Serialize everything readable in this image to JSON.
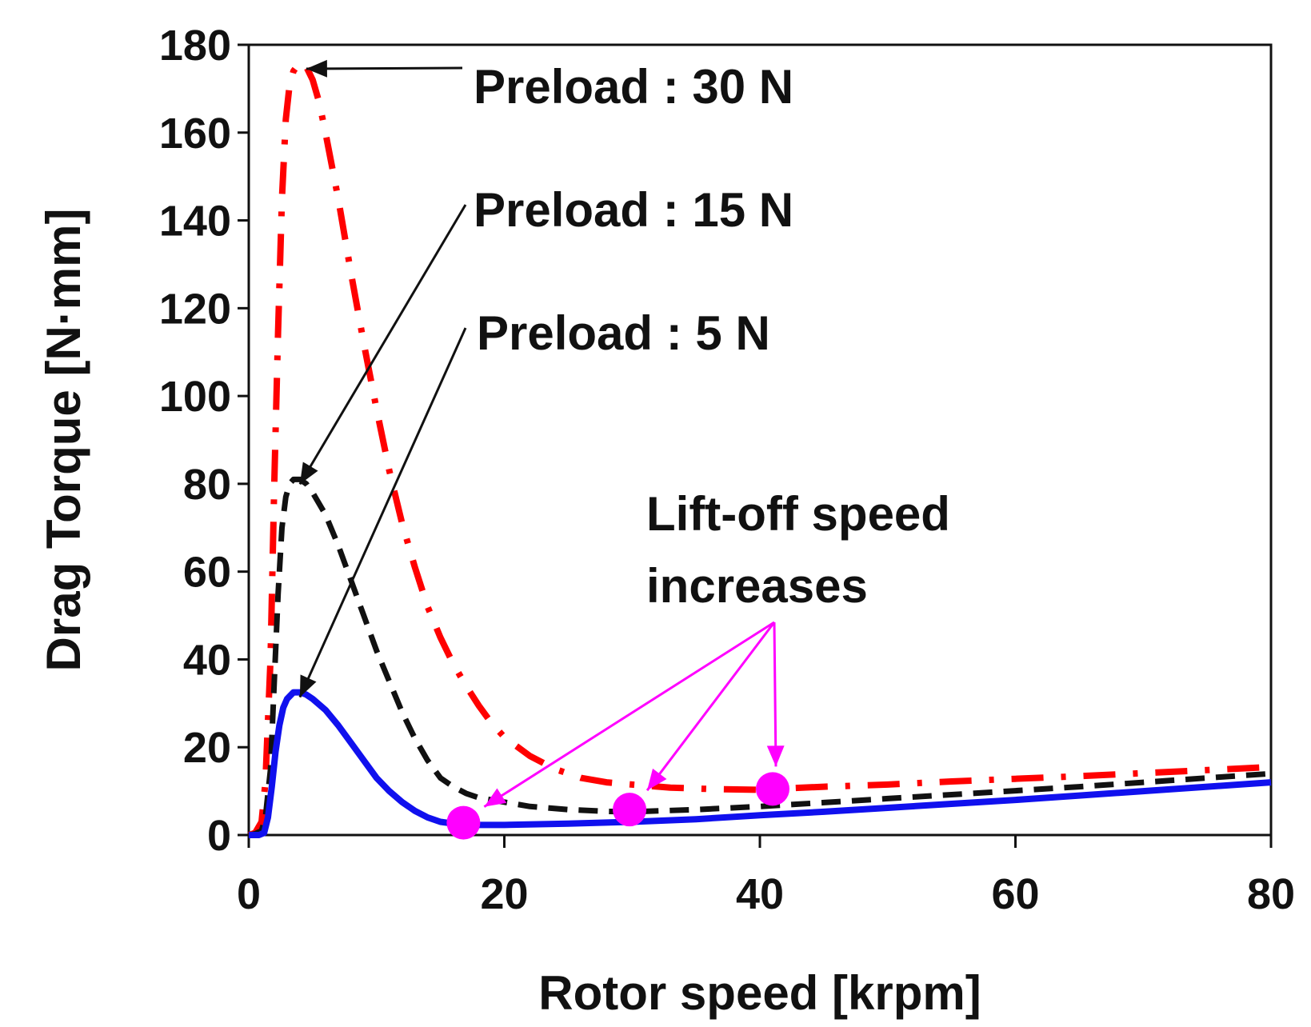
{
  "chart_data": {
    "type": "line",
    "title": "",
    "xlabel": "Rotor speed [krpm]",
    "ylabel": "Drag Torque [N·mm]",
    "xlim": [
      0,
      80
    ],
    "ylim": [
      0,
      180
    ],
    "x_ticks": [
      "0",
      "20",
      "40",
      "60",
      "80"
    ],
    "y_ticks": [
      "0",
      "20",
      "40",
      "60",
      "80",
      "100",
      "120",
      "140",
      "160",
      "180"
    ],
    "grid": false,
    "colors": {
      "p30": "#ff0000",
      "p15": "#111111",
      "p5": "#1010ee",
      "marker": "#ff00ff",
      "text": "#111111"
    },
    "series": [
      {
        "name": "Preload : 30 N",
        "style": "dash-dot",
        "x": [
          0,
          0.5,
          1.0,
          1.3,
          1.7,
          2.0,
          2.3,
          2.6,
          2.9,
          3.2,
          3.5,
          4.0,
          4.5,
          5.0,
          5.5,
          6.0,
          7.0,
          8.0,
          9.0,
          10.0,
          11.0,
          12.0,
          13.0,
          14.0,
          15.0,
          16.0,
          17.0,
          18.0,
          19.0,
          20.0,
          22.0,
          24.0,
          26.0,
          28.0,
          30.0,
          33.0,
          36.0,
          40.0,
          41.0,
          45.0,
          50.0,
          55.0,
          60.0,
          65.0,
          70.0,
          75.0,
          80.0
        ],
        "y": [
          0,
          0.5,
          3,
          12,
          40,
          80,
          115,
          145,
          163,
          171,
          174,
          176,
          175,
          172,
          167,
          160,
          145,
          128,
          112,
          97,
          83,
          71,
          61,
          52,
          45,
          39,
          34,
          29.5,
          25.5,
          22.3,
          18,
          15,
          13,
          12,
          11.5,
          10.8,
          10.5,
          10.3,
          10.5,
          11,
          11.5,
          12.2,
          12.8,
          13.4,
          14.1,
          14.8,
          15.5
        ]
      },
      {
        "name": "Preload : 15 N",
        "style": "dashed",
        "x": [
          0,
          0.5,
          1.0,
          1.3,
          1.7,
          2.0,
          2.3,
          2.6,
          2.9,
          3.2,
          3.5,
          4.0,
          4.5,
          5.0,
          6.0,
          7.0,
          8.0,
          9.0,
          10.0,
          11.0,
          12.0,
          13.0,
          14.0,
          15.0,
          16.0,
          17.0,
          18.0,
          20.0,
          22.0,
          25.0,
          28.0,
          30.0,
          35.0,
          40.0,
          45.0,
          50.0,
          55.0,
          60.0,
          65.0,
          70.0,
          75.0,
          80.0
        ],
        "y": [
          0,
          0.3,
          1,
          4,
          15,
          35,
          55,
          70,
          77,
          80,
          81,
          81,
          80,
          78,
          73,
          66,
          58,
          50,
          42,
          35,
          28,
          22,
          17,
          13,
          11,
          9.5,
          8.5,
          7.5,
          6.5,
          5.8,
          5.4,
          5.3,
          5.8,
          6.5,
          7.4,
          8.3,
          9.2,
          10.1,
          11,
          12,
          13,
          14
        ]
      },
      {
        "name": "Preload : 5 N",
        "style": "solid",
        "x": [
          0,
          0.8,
          1.2,
          1.5,
          1.8,
          2.1,
          2.4,
          2.7,
          3.0,
          3.5,
          4.0,
          4.5,
          5.0,
          6.0,
          7.0,
          8.0,
          9.0,
          10.0,
          11.0,
          12.0,
          13.0,
          14.0,
          15.0,
          16.0,
          17.0,
          18.0,
          20.0,
          25.0,
          30.0,
          35.0,
          40.0,
          45.0,
          50.0,
          55.0,
          60.0,
          65.0,
          70.0,
          75.0,
          80.0
        ],
        "y": [
          0,
          0,
          0.5,
          4,
          11,
          19,
          25,
          29,
          31,
          32.5,
          32.5,
          32,
          31,
          28.5,
          25,
          21,
          17,
          13,
          10,
          7.5,
          5.5,
          4,
          3,
          2.6,
          2.4,
          2.3,
          2.3,
          2.6,
          3,
          3.6,
          4.5,
          5.3,
          6.2,
          7.1,
          8,
          9,
          10,
          11,
          12
        ]
      }
    ],
    "lift_off_points": {
      "x": [
        16.8,
        29.8,
        41.0
      ],
      "y": [
        2.8,
        5.8,
        10.5
      ]
    },
    "annotations": {
      "p30": "Preload : 30 N",
      "p15": "Preload : 15 N",
      "p5": "Preload : 5 N",
      "liftoff_line1": "Lift-off speed",
      "liftoff_line2": "increases"
    }
  }
}
